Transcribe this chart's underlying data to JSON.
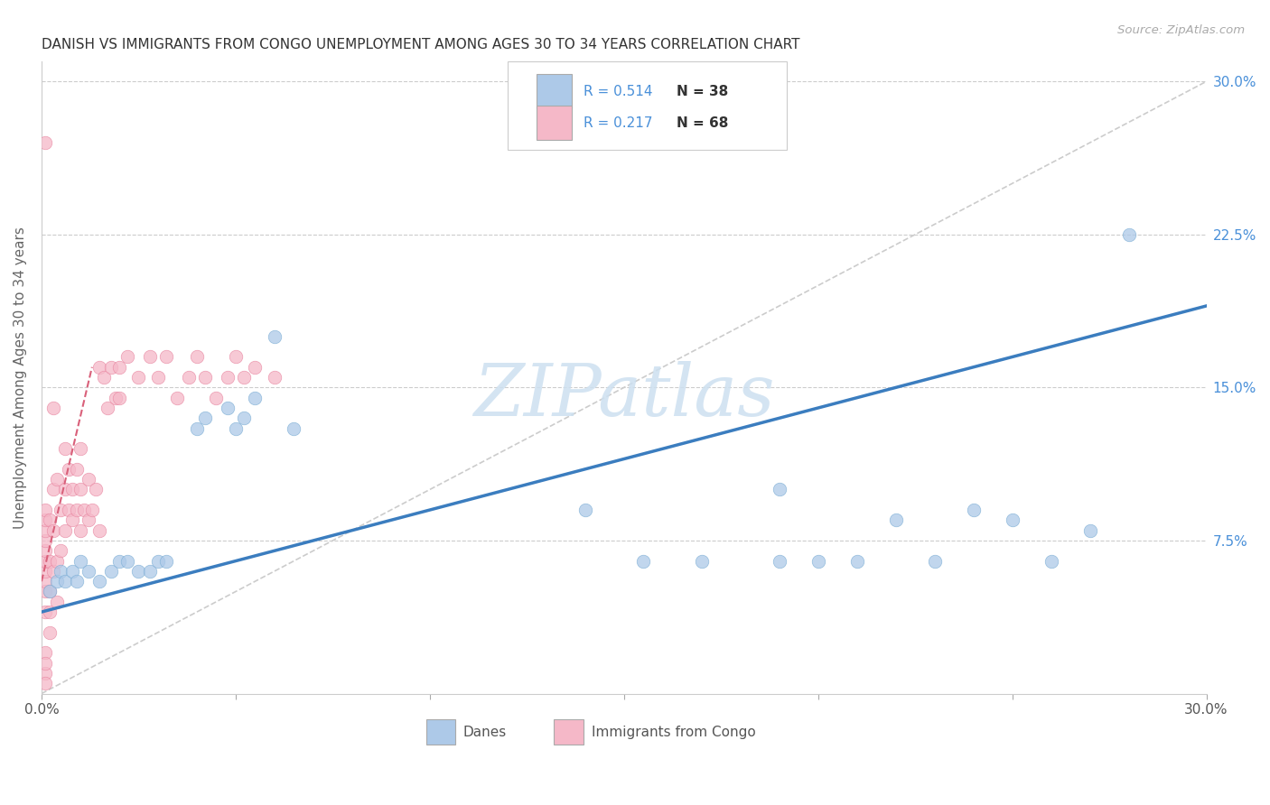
{
  "title": "DANISH VS IMMIGRANTS FROM CONGO UNEMPLOYMENT AMONG AGES 30 TO 34 YEARS CORRELATION CHART",
  "source": "Source: ZipAtlas.com",
  "ylabel": "Unemployment Among Ages 30 to 34 years",
  "xlim": [
    0.0,
    0.3
  ],
  "ylim": [
    0.0,
    0.31
  ],
  "y_ticks_right": [
    0.075,
    0.15,
    0.225,
    0.3
  ],
  "y_tick_labels_right": [
    "7.5%",
    "15.0%",
    "22.5%",
    "30.0%"
  ],
  "danes_color": "#adc9e8",
  "danes_edge_color": "#7aadd4",
  "congo_color": "#f5b8c8",
  "congo_edge_color": "#e8849f",
  "danes_line_color": "#3b7dbf",
  "congo_line_color": "#d9607a",
  "grid_color": "#cccccc",
  "watermark_color": "#cde0f0",
  "danes_x": [
    0.002,
    0.004,
    0.005,
    0.006,
    0.008,
    0.009,
    0.01,
    0.012,
    0.015,
    0.018,
    0.02,
    0.022,
    0.025,
    0.028,
    0.03,
    0.032,
    0.04,
    0.042,
    0.048,
    0.05,
    0.052,
    0.055,
    0.06,
    0.065,
    0.14,
    0.155,
    0.17,
    0.19,
    0.19,
    0.2,
    0.21,
    0.22,
    0.23,
    0.24,
    0.25,
    0.26,
    0.27,
    0.28
  ],
  "danes_y": [
    0.05,
    0.055,
    0.06,
    0.055,
    0.06,
    0.055,
    0.065,
    0.06,
    0.055,
    0.06,
    0.065,
    0.065,
    0.06,
    0.06,
    0.065,
    0.065,
    0.13,
    0.135,
    0.14,
    0.13,
    0.135,
    0.145,
    0.175,
    0.13,
    0.09,
    0.065,
    0.065,
    0.1,
    0.065,
    0.065,
    0.065,
    0.085,
    0.065,
    0.09,
    0.085,
    0.065,
    0.08,
    0.225
  ],
  "congo_x": [
    0.001,
    0.001,
    0.001,
    0.001,
    0.001,
    0.001,
    0.001,
    0.001,
    0.001,
    0.001,
    0.001,
    0.001,
    0.001,
    0.001,
    0.001,
    0.002,
    0.002,
    0.002,
    0.002,
    0.002,
    0.003,
    0.003,
    0.003,
    0.003,
    0.004,
    0.004,
    0.004,
    0.005,
    0.005,
    0.006,
    0.006,
    0.006,
    0.007,
    0.007,
    0.008,
    0.008,
    0.009,
    0.009,
    0.01,
    0.01,
    0.01,
    0.011,
    0.012,
    0.012,
    0.013,
    0.014,
    0.015,
    0.015,
    0.016,
    0.017,
    0.018,
    0.019,
    0.02,
    0.02,
    0.022,
    0.025,
    0.028,
    0.03,
    0.032,
    0.035,
    0.038,
    0.04,
    0.042,
    0.045,
    0.048,
    0.05,
    0.052,
    0.055,
    0.06
  ],
  "congo_y": [
    0.04,
    0.05,
    0.055,
    0.06,
    0.065,
    0.07,
    0.075,
    0.08,
    0.085,
    0.09,
    0.02,
    0.01,
    0.005,
    0.015,
    0.27,
    0.03,
    0.05,
    0.065,
    0.085,
    0.04,
    0.06,
    0.08,
    0.1,
    0.14,
    0.045,
    0.065,
    0.105,
    0.07,
    0.09,
    0.08,
    0.1,
    0.12,
    0.09,
    0.11,
    0.085,
    0.1,
    0.09,
    0.11,
    0.08,
    0.1,
    0.12,
    0.09,
    0.085,
    0.105,
    0.09,
    0.1,
    0.16,
    0.08,
    0.155,
    0.14,
    0.16,
    0.145,
    0.145,
    0.16,
    0.165,
    0.155,
    0.165,
    0.155,
    0.165,
    0.145,
    0.155,
    0.165,
    0.155,
    0.145,
    0.155,
    0.165,
    0.155,
    0.16,
    0.155
  ],
  "danes_line_x": [
    0.0,
    0.3
  ],
  "danes_line_y": [
    0.04,
    0.19
  ],
  "congo_line_x": [
    0.0,
    0.013
  ],
  "congo_line_y": [
    0.055,
    0.16
  ],
  "diag_line_x": [
    0.0,
    0.3
  ],
  "diag_line_y": [
    0.0,
    0.3
  ]
}
